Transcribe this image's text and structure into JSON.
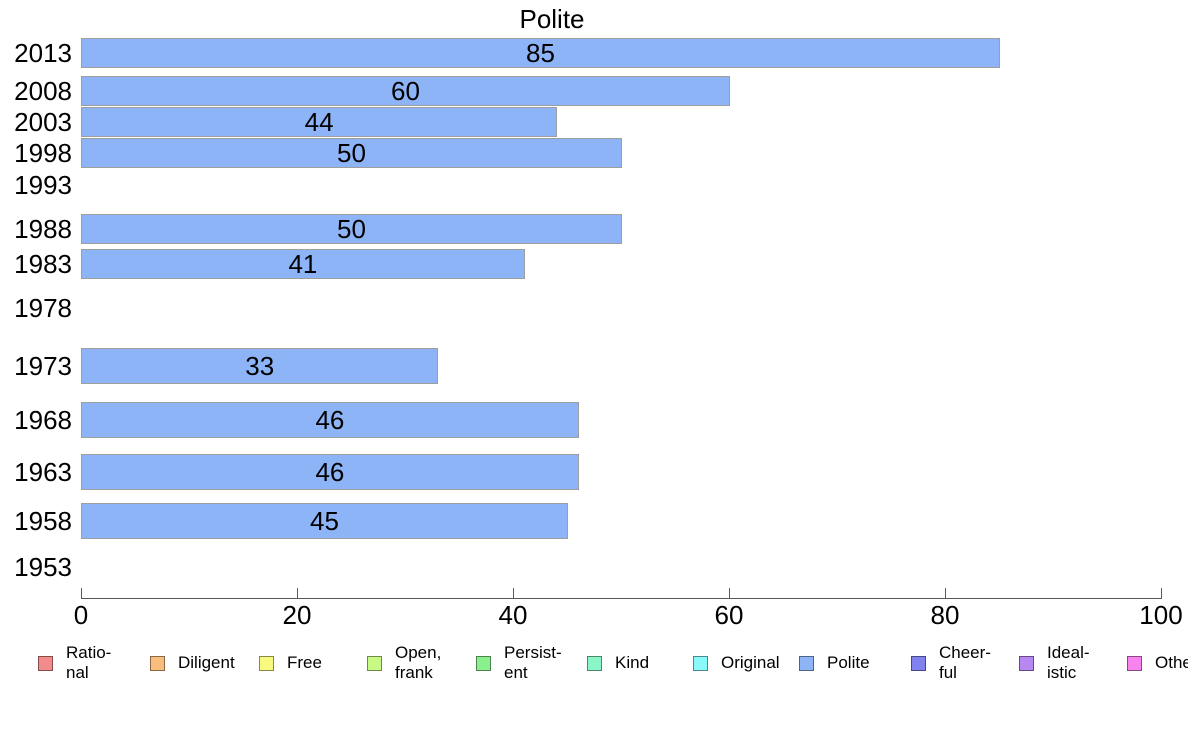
{
  "chart_data": {
    "type": "bar",
    "orientation": "horizontal",
    "title": "Polite",
    "categories": [
      "2013",
      "2008",
      "2003",
      "1998",
      "1993",
      "1988",
      "1983",
      "1978",
      "1973",
      "1968",
      "1963",
      "1958",
      "1953"
    ],
    "values": [
      85,
      60,
      44,
      50,
      null,
      50,
      41,
      null,
      33,
      46,
      46,
      45,
      null
    ],
    "xlabel": "",
    "ylabel": "",
    "xlim": [
      0,
      100
    ],
    "x_ticks": [
      0,
      20,
      40,
      60,
      80,
      100
    ],
    "grid": false,
    "legend_position": "bottom",
    "bar_color": "#8DB4F7",
    "bar_border_color": "#9E9E9E",
    "axis_color": "#595959",
    "legend": [
      {
        "label": "Ratio-\nnal",
        "color": "#F28B8B"
      },
      {
        "label": "Diligent",
        "color": "#F9BD7E"
      },
      {
        "label": "Free",
        "color": "#F9F980"
      },
      {
        "label": "Open,\nfrank",
        "color": "#C9F985"
      },
      {
        "label": "Persist-\nent",
        "color": "#8AF08E"
      },
      {
        "label": "Kind",
        "color": "#8AF5C6"
      },
      {
        "label": "Original",
        "color": "#8AF9F9"
      },
      {
        "label": "Polite",
        "color": "#8DB4F7"
      },
      {
        "label": "Cheer-\nful",
        "color": "#8181F0"
      },
      {
        "label": "Ideal-\nistic",
        "color": "#B787F2"
      },
      {
        "label": "Other",
        "color": "#F783EE"
      }
    ]
  }
}
